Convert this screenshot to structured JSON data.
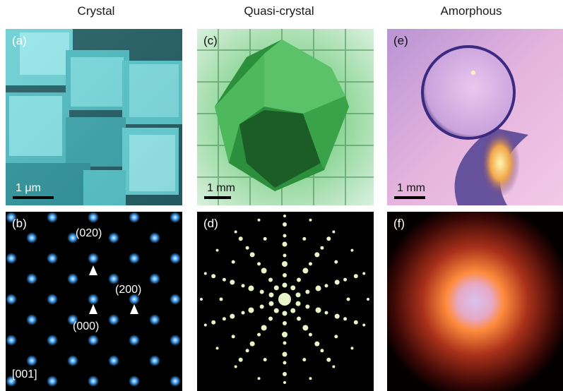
{
  "columns": [
    "Crystal",
    "Quasi-crystal",
    "Amorphous"
  ],
  "panels": {
    "a": {
      "label": "(a)",
      "scale": "1 μm"
    },
    "b": {
      "label": "(b)",
      "annotations": {
        "p020": "(020)",
        "p200": "(200)",
        "p000": "(000)",
        "zone": "[001]"
      }
    },
    "c": {
      "label": "(c)",
      "scale": "1 mm"
    },
    "d": {
      "label": "(d)"
    },
    "e": {
      "label": "(e)",
      "scale": "1 mm"
    },
    "f": {
      "label": "(f)"
    }
  },
  "colors": {
    "cube_cyan": "#5fc4c8",
    "quasi_green": "#3fae58",
    "amorphous_pink": "#d9a8d8",
    "diffraction_blue": "#4aa8ff",
    "quasi_spot": "#e8f5c8",
    "glow_orange": "#ff8a3c"
  }
}
